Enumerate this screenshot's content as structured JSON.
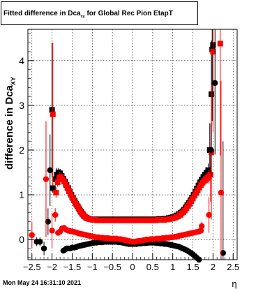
{
  "title": {
    "main": "Fitted difference in Dca",
    "sub": "xy",
    "rest": " for Global Rec Pion EtapT"
  },
  "footer": "Mon May 24 16:31:10 2021",
  "chart_data": {
    "type": "scatter",
    "xlabel": "η",
    "ylabel": "difference in Dca",
    "ylabel_sub": "XY",
    "xlim": [
      -2.6,
      2.6
    ],
    "ylim": [
      -0.45,
      4.7
    ],
    "xticks": [
      -2.5,
      -2,
      -1.5,
      -1,
      -0.5,
      0,
      0.5,
      1,
      1.5,
      2,
      2.5
    ],
    "xtick_labels": [
      "−2.5",
      "−2",
      "−1.5",
      "−1",
      "−0.5",
      "0",
      "0.5",
      "1",
      "1.5",
      "2",
      "2.5"
    ],
    "yticks": [
      0,
      1,
      2,
      3,
      4
    ],
    "ytick_labels": [
      "0",
      "1",
      "2",
      "3",
      "4"
    ],
    "grid": true,
    "colors": {
      "black": "#000000",
      "red": "#ff0000"
    },
    "series": [
      {
        "color": "black",
        "marker": "square",
        "x": [
          -2.0,
          -1.98,
          -1.92,
          -1.88,
          -1.84,
          -1.8,
          -1.76,
          -1.72,
          -1.68,
          -1.64,
          -1.6,
          -1.56,
          -1.52,
          -1.48,
          -1.44,
          -1.4,
          -1.36,
          -1.32,
          -1.28,
          -1.24,
          -1.2,
          -1.15,
          -1.1,
          -1.05,
          -1.0,
          -0.95,
          -0.9,
          -0.85,
          -0.8,
          -0.75,
          -0.7,
          -0.65,
          -0.6,
          -0.55,
          -0.5,
          -0.45,
          -0.4,
          -0.35,
          -0.3,
          -0.25,
          -0.2,
          -0.15,
          -0.1,
          -0.05,
          0,
          0.05,
          0.1,
          0.15,
          0.2,
          0.25,
          0.3,
          0.35,
          0.4,
          0.45,
          0.5,
          0.55,
          0.6,
          0.65,
          0.7,
          0.75,
          0.8,
          0.85,
          0.9,
          0.95,
          1.0,
          1.05,
          1.1,
          1.15,
          1.2,
          1.24,
          1.28,
          1.32,
          1.36,
          1.4,
          1.44,
          1.48,
          1.52,
          1.56,
          1.6,
          1.64,
          1.68,
          1.72,
          1.76,
          1.8,
          1.84,
          1.88,
          1.92,
          1.96,
          1.98,
          2.0
        ],
        "y": [
          2.9,
          1.15,
          1.35,
          1.45,
          1.5,
          1.48,
          1.42,
          1.36,
          1.3,
          1.22,
          1.15,
          1.08,
          1.0,
          0.93,
          0.87,
          0.8,
          0.74,
          0.68,
          0.62,
          0.57,
          0.52,
          0.49,
          0.47,
          0.46,
          0.45,
          0.45,
          0.45,
          0.45,
          0.45,
          0.45,
          0.45,
          0.45,
          0.45,
          0.45,
          0.45,
          0.45,
          0.45,
          0.45,
          0.45,
          0.45,
          0.45,
          0.45,
          0.45,
          0.45,
          0.45,
          0.45,
          0.45,
          0.45,
          0.45,
          0.45,
          0.45,
          0.45,
          0.45,
          0.45,
          0.45,
          0.45,
          0.45,
          0.46,
          0.46,
          0.46,
          0.47,
          0.47,
          0.48,
          0.49,
          0.5,
          0.52,
          0.54,
          0.57,
          0.6,
          0.63,
          0.67,
          0.72,
          0.77,
          0.82,
          0.88,
          0.94,
          1.0,
          1.07,
          1.14,
          1.21,
          1.28,
          1.34,
          1.4,
          1.45,
          1.5,
          1.55,
          2.0,
          3.25,
          4.25,
          4.35
        ],
        "err": [
          1.5,
          0.1,
          0.1,
          0.15,
          0.1,
          0.1,
          0.08,
          0.05,
          0.05,
          0.05,
          0.04,
          0.04,
          0.03,
          0.03,
          0.03,
          0.03,
          0.02,
          0.02,
          0.02,
          0.02,
          0.02,
          0.02,
          0.02,
          0.02,
          0.02,
          0.02,
          0.02,
          0.02,
          0.02,
          0.02,
          0.02,
          0.02,
          0.02,
          0.02,
          0.02,
          0.02,
          0.02,
          0.02,
          0.02,
          0.02,
          0.02,
          0.02,
          0.02,
          0.02,
          0.02,
          0.02,
          0.02,
          0.02,
          0.02,
          0.02,
          0.02,
          0.02,
          0.02,
          0.02,
          0.02,
          0.02,
          0.02,
          0.02,
          0.02,
          0.02,
          0.02,
          0.02,
          0.02,
          0.02,
          0.02,
          0.02,
          0.02,
          0.02,
          0.02,
          0.02,
          0.02,
          0.02,
          0.03,
          0.03,
          0.03,
          0.03,
          0.03,
          0.04,
          0.04,
          0.05,
          0.05,
          0.06,
          0.08,
          0.1,
          0.12,
          0.15,
          0.6,
          1.2,
          1.6,
          1.8
        ]
      },
      {
        "color": "red",
        "marker": "square",
        "x": [
          -1.98,
          -1.9,
          -1.86,
          -1.82,
          -1.78,
          -1.74,
          -1.7,
          -1.66,
          -1.62,
          -1.58,
          -1.54,
          -1.5,
          -1.46,
          -1.42,
          -1.38,
          -1.34,
          -1.3,
          -1.26,
          -1.22,
          -1.18,
          -1.13,
          -1.08,
          -1.03,
          -0.98,
          -0.93,
          -0.88,
          -0.83,
          -0.78,
          -0.73,
          -0.68,
          -0.63,
          -0.58,
          -0.53,
          -0.48,
          -0.43,
          -0.38,
          -0.33,
          -0.28,
          -0.23,
          -0.18,
          -0.13,
          -0.08,
          -0.03,
          0.03,
          0.08,
          0.13,
          0.18,
          0.23,
          0.28,
          0.33,
          0.38,
          0.43,
          0.48,
          0.53,
          0.58,
          0.63,
          0.68,
          0.73,
          0.78,
          0.83,
          0.88,
          0.93,
          0.98,
          1.03,
          1.08,
          1.13,
          1.18,
          1.22,
          1.26,
          1.3,
          1.34,
          1.38,
          1.42,
          1.46,
          1.5,
          1.54,
          1.58,
          1.62,
          1.66,
          1.7,
          1.74,
          1.78,
          1.82,
          1.86,
          1.9,
          1.94,
          1.96,
          2.0,
          2.18
        ],
        "y": [
          2.8,
          1.05,
          1.28,
          1.38,
          1.4,
          1.35,
          1.3,
          1.23,
          1.16,
          1.08,
          1.01,
          0.94,
          0.88,
          0.82,
          0.76,
          0.7,
          0.64,
          0.59,
          0.55,
          0.51,
          0.48,
          0.46,
          0.45,
          0.44,
          0.44,
          0.43,
          0.43,
          0.43,
          0.43,
          0.43,
          0.43,
          0.43,
          0.43,
          0.43,
          0.43,
          0.43,
          0.43,
          0.43,
          0.43,
          0.43,
          0.43,
          0.43,
          0.43,
          0.43,
          0.43,
          0.43,
          0.43,
          0.43,
          0.43,
          0.43,
          0.43,
          0.43,
          0.43,
          0.43,
          0.43,
          0.44,
          0.44,
          0.44,
          0.44,
          0.45,
          0.45,
          0.46,
          0.47,
          0.48,
          0.5,
          0.52,
          0.55,
          0.58,
          0.61,
          0.65,
          0.7,
          0.75,
          0.8,
          0.86,
          0.92,
          0.98,
          1.04,
          1.1,
          1.16,
          1.22,
          1.27,
          1.31,
          1.35,
          1.38,
          1.4,
          1.45,
          1.95,
          4.2,
          4.38
        ],
        "err": [
          1.6,
          0.12,
          0.1,
          0.12,
          0.1,
          0.08,
          0.06,
          0.05,
          0.05,
          0.04,
          0.04,
          0.03,
          0.03,
          0.03,
          0.03,
          0.02,
          0.02,
          0.02,
          0.02,
          0.02,
          0.02,
          0.02,
          0.02,
          0.02,
          0.02,
          0.02,
          0.02,
          0.02,
          0.02,
          0.02,
          0.02,
          0.02,
          0.02,
          0.02,
          0.02,
          0.02,
          0.02,
          0.02,
          0.02,
          0.02,
          0.02,
          0.02,
          0.02,
          0.02,
          0.02,
          0.02,
          0.02,
          0.02,
          0.02,
          0.02,
          0.02,
          0.02,
          0.02,
          0.02,
          0.02,
          0.02,
          0.02,
          0.02,
          0.02,
          0.02,
          0.02,
          0.02,
          0.02,
          0.02,
          0.02,
          0.02,
          0.02,
          0.02,
          0.02,
          0.02,
          0.02,
          0.02,
          0.02,
          0.03,
          0.03,
          0.03,
          0.04,
          0.04,
          0.05,
          0.05,
          0.06,
          0.08,
          0.1,
          0.12,
          0.15,
          0.6,
          1.5,
          1.8,
          2.5
        ]
      },
      {
        "color": "black",
        "marker": "circle",
        "x": [
          -2.05,
          -2.38,
          -2.3,
          -2.2,
          -2.1,
          -1.72,
          -1.68,
          -1.64,
          -1.6,
          -1.55,
          -1.5,
          -1.45,
          -1.4,
          -1.35,
          -1.3,
          -1.25,
          -1.2,
          -1.15,
          -1.1,
          -1.05,
          -1.0,
          -0.95,
          -0.9,
          -0.85,
          -0.8,
          -0.75,
          -0.7,
          -0.65,
          -0.6,
          -0.55,
          -0.5,
          -0.45,
          -0.4,
          -0.35,
          -0.3,
          -0.25,
          -0.2,
          -0.15,
          -0.1,
          -0.05,
          0,
          0.05,
          0.1,
          0.15,
          0.2,
          0.25,
          0.3,
          0.35,
          0.4,
          0.45,
          0.5,
          0.55,
          0.6,
          0.65,
          0.7,
          0.75,
          0.8,
          0.85,
          0.9,
          0.95,
          1.0,
          1.05,
          1.1,
          1.15,
          1.2,
          1.25,
          1.3,
          1.35,
          1.4,
          1.45,
          1.5,
          1.55,
          1.6,
          1.65,
          1.95,
          2.05,
          2.25
        ],
        "y": [
          1.55,
          -0.05,
          -0.05,
          -0.2,
          0.4,
          -0.25,
          -0.23,
          -0.2,
          -0.2,
          -0.2,
          -0.18,
          -0.18,
          -0.17,
          -0.15,
          -0.14,
          -0.13,
          -0.12,
          -0.11,
          -0.1,
          -0.09,
          -0.08,
          -0.07,
          -0.07,
          -0.06,
          -0.06,
          -0.06,
          -0.05,
          -0.05,
          -0.05,
          -0.05,
          -0.05,
          -0.05,
          -0.05,
          -0.06,
          -0.06,
          -0.07,
          -0.08,
          -0.09,
          -0.1,
          -0.1,
          -0.1,
          -0.1,
          -0.1,
          -0.09,
          -0.09,
          -0.08,
          -0.08,
          -0.08,
          -0.07,
          -0.07,
          -0.07,
          -0.07,
          -0.08,
          -0.08,
          -0.09,
          -0.09,
          -0.1,
          -0.1,
          -0.11,
          -0.12,
          -0.13,
          -0.14,
          -0.15,
          -0.16,
          -0.18,
          -0.2,
          -0.22,
          -0.24,
          -0.27,
          -0.3,
          -0.33,
          -0.37,
          -0.41,
          -0.45,
          2.0,
          3.5,
          -0.3
        ],
        "err": [
          0.8,
          0.1,
          0.1,
          0.15,
          0.3,
          0.05,
          0.03,
          0.03,
          0.03,
          0.03,
          0.02,
          0.02,
          0.02,
          0.02,
          0.02,
          0.02,
          0.02,
          0.02,
          0.02,
          0.02,
          0.02,
          0.02,
          0.02,
          0.02,
          0.02,
          0.02,
          0.02,
          0.02,
          0.02,
          0.02,
          0.02,
          0.02,
          0.02,
          0.02,
          0.02,
          0.02,
          0.02,
          0.02,
          0.02,
          0.02,
          0.02,
          0.02,
          0.02,
          0.02,
          0.02,
          0.02,
          0.02,
          0.02,
          0.02,
          0.02,
          0.02,
          0.02,
          0.02,
          0.02,
          0.02,
          0.02,
          0.02,
          0.02,
          0.02,
          0.02,
          0.02,
          0.02,
          0.02,
          0.02,
          0.02,
          0.02,
          0.02,
          0.02,
          0.02,
          0.02,
          0.03,
          0.03,
          0.04,
          0.05,
          0.6,
          1.6,
          2.5
        ]
      },
      {
        "color": "red",
        "marker": "circle",
        "x": [
          -2.5,
          -2.15,
          -2.0,
          -1.92,
          -1.85,
          -1.8,
          -1.75,
          -1.7,
          -1.65,
          -1.6,
          -1.55,
          -1.5,
          -1.45,
          -1.4,
          -1.35,
          -1.3,
          -1.25,
          -1.2,
          -1.15,
          -1.1,
          -1.05,
          -1.0,
          -0.95,
          -0.9,
          -0.85,
          -0.8,
          -0.75,
          -0.7,
          -0.65,
          -0.6,
          -0.55,
          -0.5,
          -0.45,
          -0.4,
          -0.35,
          -0.3,
          -0.25,
          -0.2,
          -0.15,
          -0.1,
          -0.05,
          0,
          0.05,
          0.1,
          0.15,
          0.2,
          0.25,
          0.3,
          0.35,
          0.4,
          0.45,
          0.5,
          0.55,
          0.6,
          0.65,
          0.7,
          0.75,
          0.8,
          0.85,
          0.9,
          0.95,
          1.0,
          1.05,
          1.1,
          1.15,
          1.2,
          1.25,
          1.3,
          1.35,
          1.4,
          1.45,
          1.5,
          1.55,
          1.6,
          1.65,
          1.7,
          1.72,
          1.9,
          2.2
        ],
        "y": [
          0.1,
          1.35,
          0.2,
          0.55,
          0.15,
          0.18,
          0.25,
          0.26,
          0.22,
          0.2,
          0.19,
          0.18,
          0.17,
          0.16,
          0.14,
          0.13,
          0.12,
          0.11,
          0.1,
          0.09,
          0.08,
          0.07,
          0.06,
          0.05,
          0.05,
          0.04,
          0.04,
          0.03,
          0.03,
          0.03,
          0.02,
          0.02,
          0.02,
          0.02,
          0.01,
          0.01,
          0.0,
          -0.01,
          -0.02,
          -0.03,
          -0.04,
          -0.05,
          -0.05,
          -0.04,
          -0.03,
          -0.03,
          -0.02,
          -0.01,
          0.0,
          0.0,
          0.01,
          0.01,
          0.01,
          0.02,
          0.02,
          0.02,
          0.03,
          0.03,
          0.04,
          0.04,
          0.05,
          0.05,
          0.06,
          0.07,
          0.08,
          0.09,
          0.1,
          0.11,
          0.12,
          0.13,
          0.14,
          0.15,
          0.16,
          0.17,
          0.18,
          0.2,
          0.3,
          0.55,
          1.05
        ],
        "err": [
          0.3,
          1.3,
          0.4,
          0.15,
          0.05,
          0.04,
          0.04,
          0.03,
          0.03,
          0.03,
          0.02,
          0.02,
          0.02,
          0.02,
          0.02,
          0.02,
          0.02,
          0.02,
          0.02,
          0.02,
          0.02,
          0.02,
          0.02,
          0.02,
          0.02,
          0.02,
          0.02,
          0.02,
          0.02,
          0.02,
          0.02,
          0.02,
          0.02,
          0.02,
          0.02,
          0.02,
          0.02,
          0.02,
          0.02,
          0.02,
          0.02,
          0.02,
          0.02,
          0.02,
          0.02,
          0.02,
          0.02,
          0.02,
          0.02,
          0.02,
          0.02,
          0.02,
          0.02,
          0.02,
          0.02,
          0.02,
          0.02,
          0.02,
          0.02,
          0.02,
          0.02,
          0.02,
          0.02,
          0.02,
          0.02,
          0.02,
          0.02,
          0.02,
          0.02,
          0.02,
          0.02,
          0.02,
          0.02,
          0.03,
          0.03,
          0.04,
          0.1,
          0.4,
          2.5
        ]
      }
    ]
  }
}
